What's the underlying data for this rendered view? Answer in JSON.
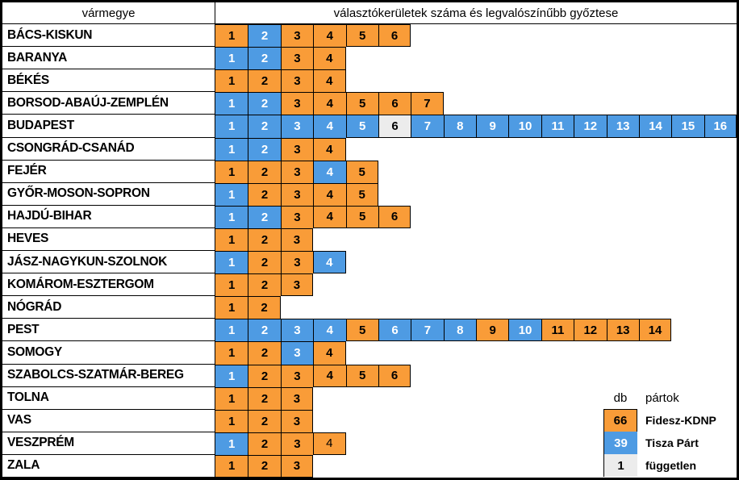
{
  "header": {
    "col1": "vármegye",
    "col2": "választókerületek száma és legvalószínűbb győztese"
  },
  "legend": {
    "db_label": "db",
    "partok_label": "pártok",
    "items": [
      {
        "count": "66",
        "label": "Fidesz-KDNP",
        "party": "F"
      },
      {
        "count": "39",
        "label": "Tisza Párt",
        "party": "T"
      },
      {
        "count": "1",
        "label": "független",
        "party": "I"
      }
    ]
  },
  "colors": {
    "F": "#F99C38",
    "T": "#4E9BE3",
    "I": "#ECECEC",
    "border": "#000000",
    "text_on_blue": "#FFFFFF",
    "text_on_orange": "#000000"
  },
  "chart_data": {
    "type": "table",
    "title": "választókerületek száma és legvalószínűbb győztese",
    "row_header": "vármegye",
    "cell_tokens": {
      "F": "Fidesz-KDNP",
      "f": "Fidesz-KDNP (normal-weight number)",
      "T": "Tisza Párt",
      "I": "független"
    },
    "legend_counts": {
      "Fidesz-KDNP": 66,
      "Tisza Párt": 39,
      "független": 1
    },
    "rows": [
      {
        "county": "BÁCS-KISKUN",
        "winners": [
          "F",
          "T",
          "F",
          "F",
          "F",
          "F"
        ]
      },
      {
        "county": "BARANYA",
        "winners": [
          "T",
          "T",
          "F",
          "F"
        ]
      },
      {
        "county": "BÉKÉS",
        "winners": [
          "F",
          "F",
          "F",
          "F"
        ]
      },
      {
        "county": "BORSOD-ABAÚJ-ZEMPLÉN",
        "winners": [
          "T",
          "T",
          "F",
          "F",
          "F",
          "F",
          "F"
        ]
      },
      {
        "county": "BUDAPEST",
        "winners": [
          "T",
          "T",
          "T",
          "T",
          "T",
          "I",
          "T",
          "T",
          "T",
          "T",
          "T",
          "T",
          "T",
          "T",
          "T",
          "T"
        ]
      },
      {
        "county": "CSONGRÁD-CSANÁD",
        "winners": [
          "T",
          "T",
          "F",
          "F"
        ]
      },
      {
        "county": "FEJÉR",
        "winners": [
          "F",
          "F",
          "F",
          "T",
          "F"
        ]
      },
      {
        "county": "GYŐR-MOSON-SOPRON",
        "winners": [
          "T",
          "F",
          "F",
          "F",
          "F"
        ]
      },
      {
        "county": "HAJDÚ-BIHAR",
        "winners": [
          "T",
          "T",
          "F",
          "F",
          "F",
          "F"
        ]
      },
      {
        "county": "HEVES",
        "winners": [
          "F",
          "F",
          "F"
        ]
      },
      {
        "county": "JÁSZ-NAGYKUN-SZOLNOK",
        "winners": [
          "T",
          "F",
          "F",
          "T"
        ]
      },
      {
        "county": "KOMÁROM-ESZTERGOM",
        "winners": [
          "F",
          "F",
          "F"
        ]
      },
      {
        "county": "NÓGRÁD",
        "winners": [
          "F",
          "F"
        ]
      },
      {
        "county": "PEST",
        "winners": [
          "T",
          "T",
          "T",
          "T",
          "F",
          "T",
          "T",
          "T",
          "F",
          "T",
          "F",
          "F",
          "F",
          "F"
        ]
      },
      {
        "county": "SOMOGY",
        "winners": [
          "F",
          "F",
          "T",
          "F"
        ]
      },
      {
        "county": "SZABOLCS-SZATMÁR-BEREG",
        "winners": [
          "T",
          "F",
          "F",
          "F",
          "F",
          "F"
        ]
      },
      {
        "county": "TOLNA",
        "winners": [
          "F",
          "F",
          "F"
        ]
      },
      {
        "county": "VAS",
        "winners": [
          "F",
          "F",
          "F"
        ]
      },
      {
        "county": "VESZPRÉM",
        "winners": [
          "T",
          "F",
          "F",
          "f"
        ]
      },
      {
        "county": "ZALA",
        "winners": [
          "F",
          "F",
          "F"
        ]
      }
    ]
  }
}
